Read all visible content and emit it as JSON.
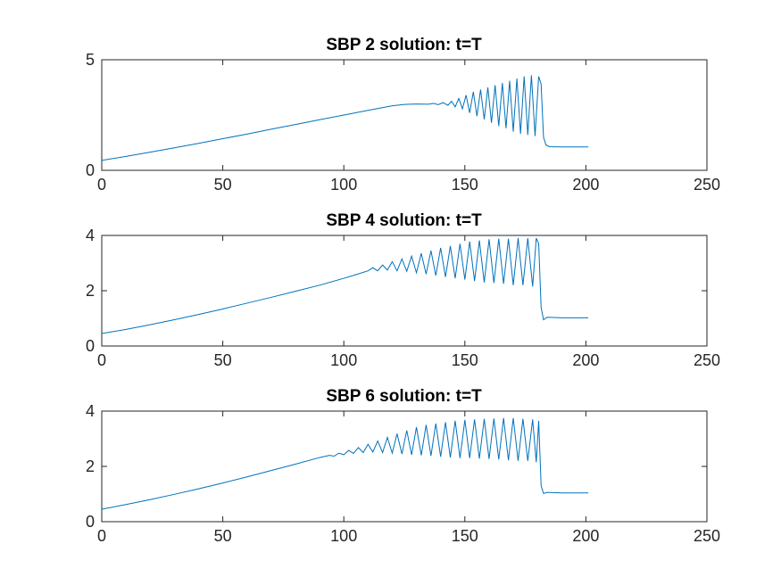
{
  "chart_data": [
    {
      "type": "line",
      "title": "SBP 2 solution: t=T",
      "xlim": [
        0,
        250
      ],
      "ylim": [
        0,
        5
      ],
      "xticks": [
        0,
        50,
        100,
        150,
        200,
        250
      ],
      "yticks": [
        0,
        5
      ],
      "grid": false,
      "series": [
        {
          "color": "#0072BD",
          "x": [
            0,
            10,
            20,
            30,
            40,
            50,
            60,
            70,
            80,
            90,
            100,
            110,
            120,
            125,
            130,
            135,
            137,
            139,
            141,
            143,
            144.5,
            146,
            147.5,
            149,
            150.5,
            152,
            153.5,
            155,
            156.5,
            158,
            159.5,
            161,
            162.5,
            164,
            165.5,
            167,
            168.5,
            170,
            171.5,
            173,
            174.5,
            176,
            177.5,
            179,
            180.5,
            181.5,
            182.5,
            183.5,
            185,
            190,
            195,
            200,
            201
          ],
          "y": [
            0.45,
            0.63,
            0.82,
            1.02,
            1.22,
            1.43,
            1.64,
            1.86,
            2.07,
            2.29,
            2.5,
            2.71,
            2.92,
            2.98,
            3.0,
            2.99,
            3.03,
            2.97,
            3.06,
            2.94,
            3.12,
            2.87,
            3.25,
            2.78,
            3.4,
            2.6,
            3.55,
            2.45,
            3.65,
            2.3,
            3.75,
            2.15,
            3.85,
            2.0,
            3.95,
            1.9,
            4.05,
            1.75,
            4.15,
            1.65,
            4.25,
            1.6,
            4.3,
            1.55,
            4.25,
            3.9,
            1.5,
            1.15,
            1.07,
            1.06,
            1.06,
            1.06,
            1.06
          ]
        }
      ]
    },
    {
      "type": "line",
      "title": "SBP 4 solution: t=T",
      "xlim": [
        0,
        250
      ],
      "ylim": [
        0,
        4
      ],
      "xticks": [
        0,
        50,
        100,
        150,
        200,
        250
      ],
      "yticks": [
        0,
        2,
        4
      ],
      "grid": false,
      "series": [
        {
          "color": "#0072BD",
          "x": [
            0,
            10,
            20,
            30,
            40,
            50,
            60,
            70,
            80,
            90,
            100,
            105,
            110,
            112,
            114,
            116,
            118,
            120,
            122,
            124,
            126,
            128,
            130,
            132,
            134,
            136,
            138,
            140,
            142,
            144,
            146,
            148,
            150,
            152,
            154,
            156,
            158,
            160,
            162,
            164,
            166,
            168,
            170,
            172,
            174,
            176,
            178,
            179.5,
            180.5,
            181.5,
            182.5,
            184,
            190,
            195,
            201
          ],
          "y": [
            0.45,
            0.6,
            0.77,
            0.95,
            1.14,
            1.34,
            1.55,
            1.76,
            1.98,
            2.2,
            2.45,
            2.58,
            2.72,
            2.83,
            2.72,
            2.93,
            2.75,
            3.05,
            2.72,
            3.15,
            2.7,
            3.25,
            2.65,
            3.35,
            2.6,
            3.45,
            2.55,
            3.55,
            2.5,
            3.62,
            2.45,
            3.7,
            2.4,
            3.78,
            2.35,
            3.82,
            2.3,
            3.86,
            2.28,
            3.88,
            2.25,
            3.88,
            2.2,
            3.9,
            2.2,
            3.9,
            2.15,
            3.9,
            3.7,
            1.4,
            0.95,
            1.04,
            1.02,
            1.02,
            1.02
          ]
        }
      ]
    },
    {
      "type": "line",
      "title": "SBP 6 solution: t=T",
      "xlim": [
        0,
        250
      ],
      "ylim": [
        0,
        4
      ],
      "xticks": [
        0,
        50,
        100,
        150,
        200,
        250
      ],
      "yticks": [
        0,
        2,
        4
      ],
      "grid": false,
      "series": [
        {
          "color": "#0072BD",
          "x": [
            0,
            10,
            20,
            30,
            40,
            50,
            60,
            70,
            80,
            90,
            94,
            96,
            98,
            100,
            102,
            104,
            106,
            108,
            110,
            112,
            114,
            116,
            118,
            120,
            122,
            124,
            126,
            128,
            130,
            132,
            134,
            136,
            138,
            140,
            142,
            144,
            146,
            148,
            150,
            152,
            154,
            156,
            158,
            160,
            162,
            164,
            166,
            168,
            170,
            172,
            174,
            176,
            178,
            179.5,
            180.5,
            181.5,
            182.5,
            184,
            190,
            195,
            201
          ],
          "y": [
            0.45,
            0.62,
            0.8,
            0.99,
            1.19,
            1.4,
            1.62,
            1.85,
            2.08,
            2.32,
            2.4,
            2.37,
            2.48,
            2.42,
            2.58,
            2.47,
            2.68,
            2.5,
            2.8,
            2.52,
            2.92,
            2.5,
            3.05,
            2.48,
            3.18,
            2.45,
            3.3,
            2.42,
            3.42,
            2.4,
            3.5,
            2.38,
            3.55,
            2.35,
            3.6,
            2.32,
            3.65,
            2.3,
            3.68,
            2.3,
            3.7,
            2.28,
            3.72,
            2.27,
            3.73,
            2.25,
            3.75,
            2.22,
            3.75,
            2.2,
            3.72,
            2.2,
            3.7,
            2.15,
            3.65,
            1.3,
            1.02,
            1.06,
            1.04,
            1.04,
            1.04
          ]
        }
      ]
    }
  ]
}
